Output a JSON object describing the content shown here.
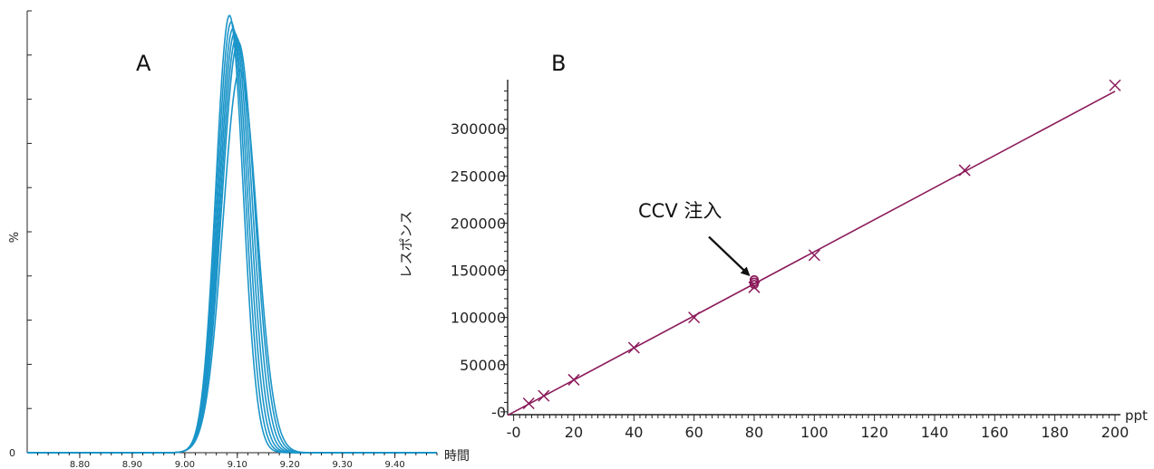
{
  "chart_data": [
    {
      "type": "line",
      "panel_label": "A",
      "ylabel": "%",
      "xlabel": "時間",
      "xlim": [
        8.7,
        9.48
      ],
      "x_ticks": [
        "8.80",
        "8.90",
        "9.00",
        "9.10",
        "9.20",
        "9.30",
        "9.40"
      ],
      "y_ticks": [
        "0"
      ],
      "peak": {
        "center_range": [
          9.085,
          9.105
        ],
        "sigma": 0.026,
        "relative_heights": [
          1.0,
          0.985,
          0.97,
          0.96,
          0.95,
          0.94,
          0.875
        ]
      },
      "grid": false,
      "colors": {
        "trace": "#1b95c9",
        "axis": "#222222"
      }
    },
    {
      "type": "scatter",
      "panel_label": "B",
      "ylabel": "レスポンス",
      "xlabel": "ppt",
      "xlim": [
        -2,
        200
      ],
      "ylim": [
        -3000,
        352000
      ],
      "x_ticks": [
        "-0",
        "20",
        "40",
        "60",
        "80",
        "100",
        "120",
        "140",
        "160",
        "180",
        "200"
      ],
      "y_ticks": [
        "-0",
        "50000",
        "100000",
        "150000",
        "200000",
        "250000",
        "300000"
      ],
      "points": [
        {
          "x": 5,
          "y": 9000
        },
        {
          "x": 10,
          "y": 17000
        },
        {
          "x": 20,
          "y": 34000
        },
        {
          "x": 40,
          "y": 68000
        },
        {
          "x": 60,
          "y": 100000
        },
        {
          "x": 80,
          "y": 132000
        },
        {
          "x": 100,
          "y": 166000
        },
        {
          "x": 150,
          "y": 256000
        },
        {
          "x": 200,
          "y": 346000
        }
      ],
      "fit_line": {
        "slope": 1700,
        "intercept": -300
      },
      "ccv_points": [
        {
          "x": 80,
          "y": 135000
        },
        {
          "x": 80,
          "y": 137500
        },
        {
          "x": 80,
          "y": 140000
        }
      ],
      "annotation": {
        "text": "CCV 注入",
        "target_x": 80,
        "target_y": 137500
      },
      "grid": false,
      "colors": {
        "series": "#8b1a5a",
        "axis": "#222222",
        "arrow": "#111111"
      }
    }
  ]
}
